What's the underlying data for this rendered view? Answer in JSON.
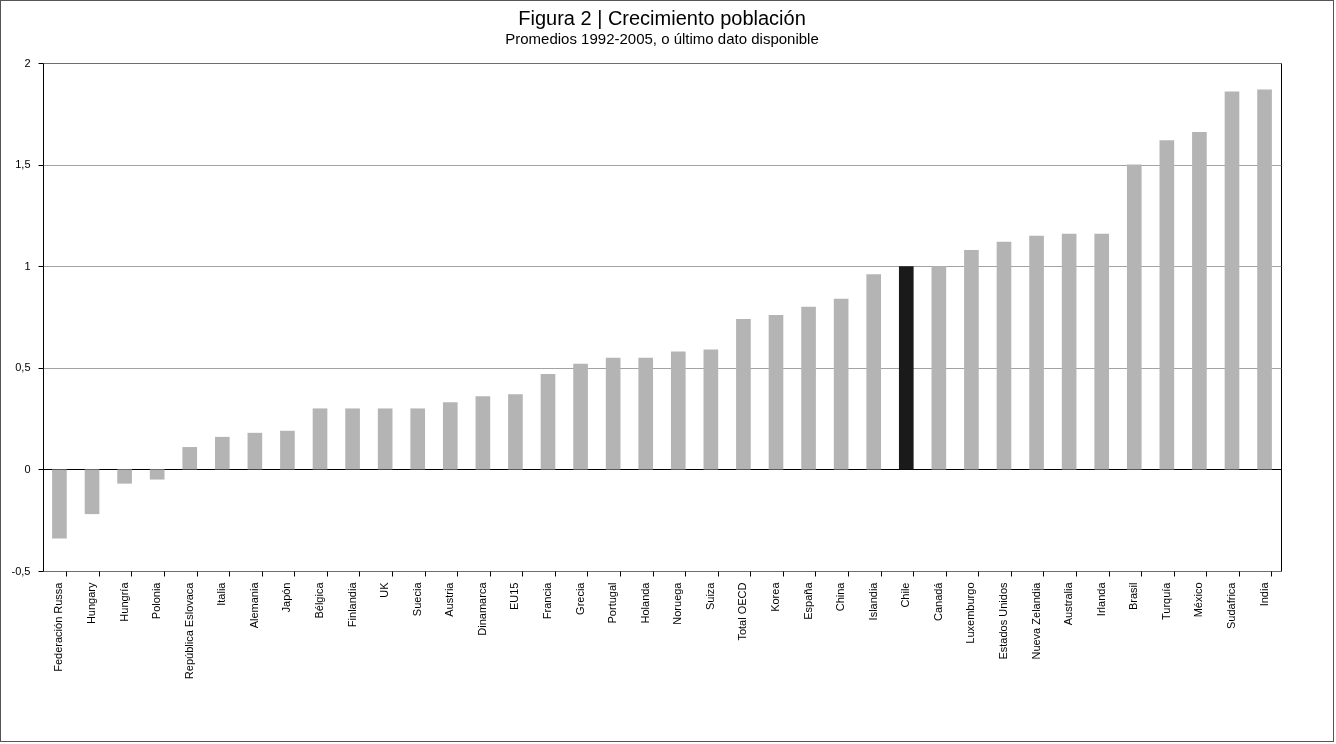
{
  "chart_data": {
    "type": "bar",
    "title": "Figura 2 | Crecimiento población",
    "subtitle": "Promedios 1992-2005, o último dato disponible",
    "categories": [
      "Federación Russa",
      "Hungary",
      "Hungría",
      "Polonia",
      "República Eslovaca",
      "Italia",
      "Alemania",
      "Japón",
      "Bélgica",
      "Finlandia",
      "UK",
      "Suecia",
      "Austria",
      "Dinamarca",
      "EU15",
      "Francia",
      "Grecia",
      "Portugal",
      "Holanda",
      "Noruega",
      "Suiza",
      "Total OECD",
      "Korea",
      "España",
      "China",
      "Islandia",
      "Chile",
      "Canadá",
      "Luxemburgo",
      "Estados Unidos",
      "Nueva Zelandia",
      "Australia",
      "Irlanda",
      "Brasil",
      "Turquía",
      "México",
      "Sudafrica",
      "India"
    ],
    "values": [
      -0.34,
      -0.22,
      -0.07,
      -0.05,
      0.11,
      0.16,
      0.18,
      0.19,
      0.3,
      0.3,
      0.3,
      0.3,
      0.33,
      0.36,
      0.37,
      0.47,
      0.52,
      0.55,
      0.55,
      0.58,
      0.59,
      0.74,
      0.76,
      0.8,
      0.84,
      0.96,
      1.0,
      1.0,
      1.08,
      1.12,
      1.15,
      1.16,
      1.16,
      1.5,
      1.62,
      1.66,
      1.86,
      1.87
    ],
    "colors": [
      "#b4b4b5",
      "#b4b4b5",
      "#b4b4b5",
      "#b4b4b5",
      "#b4b4b5",
      "#b4b4b5",
      "#b4b4b5",
      "#b4b4b5",
      "#b4b4b5",
      "#b4b4b5",
      "#b4b4b5",
      "#b4b4b5",
      "#b4b4b5",
      "#b4b4b5",
      "#b4b4b5",
      "#b4b4b5",
      "#b4b4b5",
      "#b4b4b5",
      "#b4b4b5",
      "#b4b4b5",
      "#b4b4b5",
      "#b4b4b5",
      "#b4b4b5",
      "#b4b4b5",
      "#b4b4b5",
      "#b4b4b5",
      "#1a1a1a",
      "#b4b4b5",
      "#b4b4b5",
      "#b4b4b5",
      "#b4b4b5",
      "#b4b4b5",
      "#b4b4b5",
      "#b4b4b5",
      "#b4b4b5",
      "#b4b4b5",
      "#b4b4b5",
      "#b4b4b5"
    ],
    "ylim": [
      -0.5,
      2
    ],
    "yticks": [
      {
        "value": -0.5,
        "label": "-0,5"
      },
      0,
      {
        "value": 0.5,
        "label": "0,5"
      },
      1,
      {
        "value": 1.5,
        "label": "1,5"
      },
      2
    ],
    "grid": "y"
  }
}
